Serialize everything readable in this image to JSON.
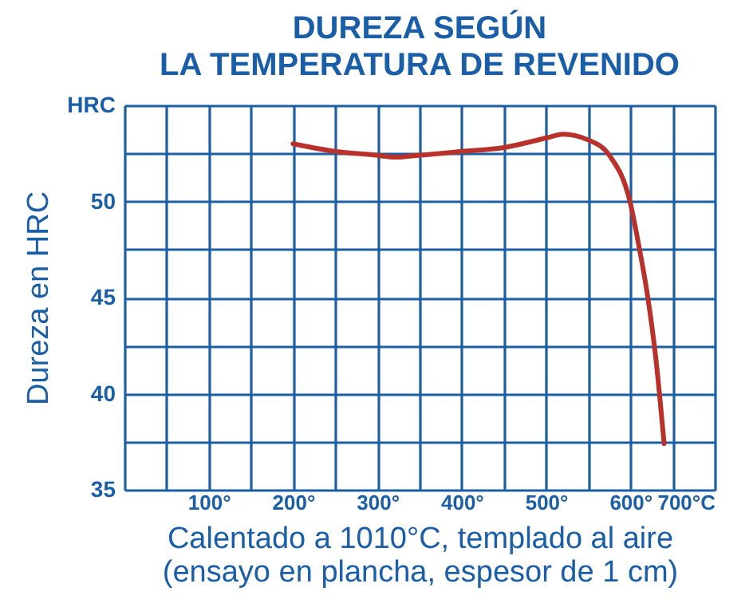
{
  "chart_data": {
    "type": "line",
    "title": "DUREZA SEGÚN\nLA TEMPERATURA DE REVENIDO",
    "ylabel": "Dureza en HRC",
    "annotations": [
      "Calentado a 1010°C, templado al aire",
      "(ensayo en plancha, espesor de 1 cm)"
    ],
    "x": [
      200,
      250,
      300,
      320,
      350,
      400,
      450,
      500,
      520,
      550,
      575,
      600,
      610,
      620,
      630,
      640
    ],
    "series": [
      {
        "color": "#b8312a",
        "values": [
          53.0,
          52.6,
          52.4,
          52.3,
          52.4,
          52.6,
          52.8,
          53.3,
          53.5,
          53.2,
          52.4,
          49.9,
          47.7,
          45.2,
          41.9,
          37.4
        ]
      }
    ],
    "xlim": [
      0,
      700
    ],
    "xticks": [
      {
        "value": 0,
        "label": null
      },
      {
        "value": 50,
        "label": null
      },
      {
        "value": 100,
        "label": "100°"
      },
      {
        "value": 150,
        "label": null
      },
      {
        "value": 200,
        "label": "200°"
      },
      {
        "value": 250,
        "label": null
      },
      {
        "value": 300,
        "label": "300°"
      },
      {
        "value": 350,
        "label": null
      },
      {
        "value": 400,
        "label": "400°"
      },
      {
        "value": 450,
        "label": null
      },
      {
        "value": 500,
        "label": "500°"
      },
      {
        "value": 550,
        "label": null
      },
      {
        "value": 600,
        "label": "600°"
      },
      {
        "value": 650,
        "label": null
      },
      {
        "value": 700,
        "label": "700°C"
      }
    ],
    "ylim": [
      35,
      55
    ],
    "yticks": [
      35,
      {
        "value": 37.5,
        "label": null
      },
      40,
      {
        "value": 42.5,
        "label": null
      },
      45,
      {
        "value": 47.5,
        "label": null
      },
      50,
      {
        "value": 52.5,
        "label": null
      },
      {
        "value": 55,
        "label": "HRC"
      }
    ],
    "grid": true,
    "marker": "none",
    "line_style": "solid"
  }
}
